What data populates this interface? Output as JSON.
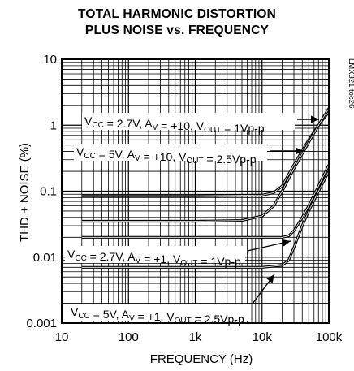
{
  "chart_data": {
    "type": "line",
    "title": "TOTAL HARMONIC DISTORTION",
    "subtitle": "PLUS NOISE vs. FREQUENCY",
    "xlabel": "FREQUENCY (Hz)",
    "ylabel": "THD + NOISE (%)",
    "x_scale": "log",
    "y_scale": "log",
    "xlim": [
      20,
      100000
    ],
    "ylim": [
      0.001,
      10
    ],
    "x_ticks": [
      {
        "value": 10,
        "label": "10"
      },
      {
        "value": 100,
        "label": "100"
      },
      {
        "value": 1000,
        "label": "1k"
      },
      {
        "value": 10000,
        "label": "10k"
      },
      {
        "value": 100000,
        "label": "100k"
      }
    ],
    "y_ticks": [
      {
        "value": 10,
        "label": "10"
      },
      {
        "value": 1,
        "label": "1"
      },
      {
        "value": 0.1,
        "label": "0.1"
      },
      {
        "value": 0.01,
        "label": "0.01"
      },
      {
        "value": 0.001,
        "label": "0.001"
      }
    ],
    "grid": true,
    "watermark": "LMX321 toc26",
    "series": [
      {
        "name": "VCC = 2.7V, AV = +10, VOUT = 1Vp-p",
        "label": {
          "pre1": "V",
          "sub1": "CC",
          "mid1": " = 2.7V, A",
          "sub2": "V",
          "mid2": " = +10, V",
          "sub3": "OUT",
          "post": " = 1Vp-p"
        },
        "x": [
          20,
          100,
          1000,
          10000,
          15000,
          20000,
          30000,
          50000,
          70000,
          100000
        ],
        "y": [
          0.085,
          0.085,
          0.085,
          0.087,
          0.095,
          0.12,
          0.25,
          0.6,
          1.0,
          1.6
        ]
      },
      {
        "name": "VCC = 5V, AV = +10, VOUT = 2.5Vp-p",
        "label": {
          "pre1": "V",
          "sub1": "CC",
          "mid1": " = 5V, A",
          "sub2": "V",
          "mid2": " = +10, V",
          "sub3": "OUT",
          "post": " = 2.5Vp-p"
        },
        "x": [
          20,
          100,
          1000,
          5000,
          10000,
          15000,
          20000,
          30000,
          50000,
          70000,
          100000
        ],
        "y": [
          0.035,
          0.035,
          0.035,
          0.036,
          0.042,
          0.06,
          0.1,
          0.22,
          0.55,
          1.0,
          1.8
        ]
      },
      {
        "name": "VCC = 2.7V, AV = +1, VOUT = 1Vp-p",
        "label": {
          "pre1": "V",
          "sub1": "CC",
          "mid1": " = 2.7V, A",
          "sub2": "V",
          "mid2": " = +1, V",
          "sub3": "OUT",
          "post": " = 1Vp-p"
        },
        "x": [
          20,
          100,
          1000,
          10000,
          20000,
          25000,
          30000,
          40000,
          50000,
          70000,
          100000
        ],
        "y": [
          0.02,
          0.02,
          0.02,
          0.02,
          0.02,
          0.021,
          0.025,
          0.04,
          0.06,
          0.12,
          0.25
        ]
      },
      {
        "name": "VCC = 5V, AV = +1, VOUT = 2.5Vp-p",
        "label": {
          "pre1": "V",
          "sub1": "CC",
          "mid1": " = 5V, A",
          "sub2": "V",
          "mid2": " = +1, V",
          "sub3": "OUT",
          "post": " = 2.5Vp-p"
        },
        "x": [
          20,
          100,
          1000,
          10000,
          20000,
          25000,
          30000,
          40000,
          50000,
          70000,
          100000
        ],
        "y": [
          0.007,
          0.007,
          0.007,
          0.007,
          0.0075,
          0.009,
          0.014,
          0.03,
          0.05,
          0.1,
          0.2
        ]
      }
    ]
  }
}
